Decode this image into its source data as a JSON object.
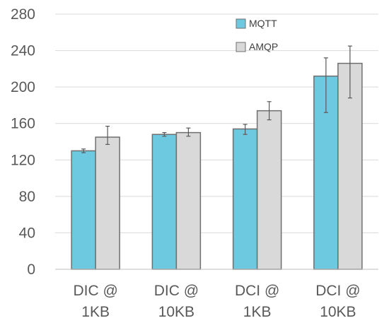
{
  "chart_data": {
    "type": "bar",
    "title": "",
    "xlabel": "",
    "ylabel": "",
    "ylim": [
      0,
      280
    ],
    "yticks": [
      0,
      40,
      80,
      120,
      160,
      200,
      240,
      280
    ],
    "ytick_labels": [
      "0",
      "40",
      "80",
      "120",
      "160",
      "200",
      "240",
      "280"
    ],
    "grid": true,
    "legend_position": "top-center",
    "categories": [
      [
        "DIC @",
        "1KB"
      ],
      [
        "DIC @",
        "10KB"
      ],
      [
        "DCI @",
        "1KB"
      ],
      [
        "DCI @",
        "10KB"
      ]
    ],
    "series": [
      {
        "name": "MQTT",
        "color": "#6cc9df",
        "values": [
          130,
          148,
          154,
          212
        ],
        "error_low": [
          128,
          146,
          148,
          172
        ],
        "error_high": [
          132,
          150,
          159,
          232
        ]
      },
      {
        "name": "AMQP",
        "color": "#d9d9d9",
        "values": [
          145,
          150,
          174,
          226
        ],
        "error_low": [
          137,
          146,
          164,
          188
        ],
        "error_high": [
          157,
          155,
          184,
          245
        ]
      }
    ]
  }
}
